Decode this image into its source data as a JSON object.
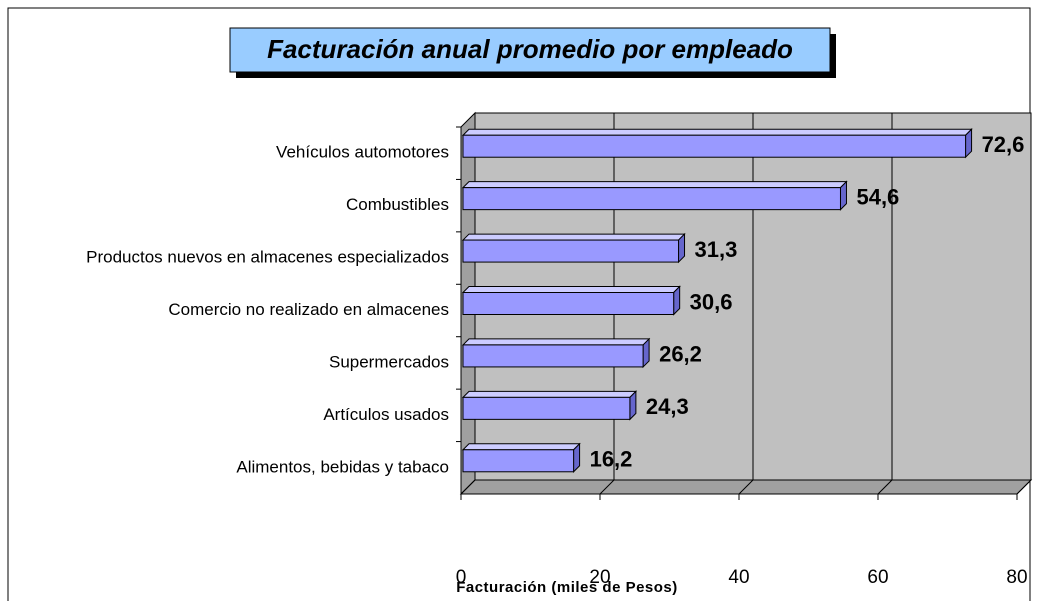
{
  "chart_data": {
    "type": "bar3d_horizontal",
    "title": "Facturación anual promedio por empleado",
    "categories": [
      "Vehículos automotores",
      "Combustibles",
      "Productos nuevos en almacenes especializados",
      "Comercio no realizado en almacenes",
      "Supermercados",
      "Artículos usados",
      "Alimentos, bebidas y tabaco"
    ],
    "values": [
      72.6,
      54.6,
      31.3,
      30.6,
      26.2,
      24.3,
      16.2
    ],
    "value_labels": [
      "72,6",
      "54,6",
      "31,3",
      "30,6",
      "26,2",
      "24,3",
      "16,2"
    ],
    "color": "#9999ff",
    "xlim": [
      0,
      80
    ],
    "xticks": [
      0,
      20,
      40,
      60,
      80
    ],
    "grid": true,
    "xlabel": "Facturación (miles de Pesos)"
  }
}
